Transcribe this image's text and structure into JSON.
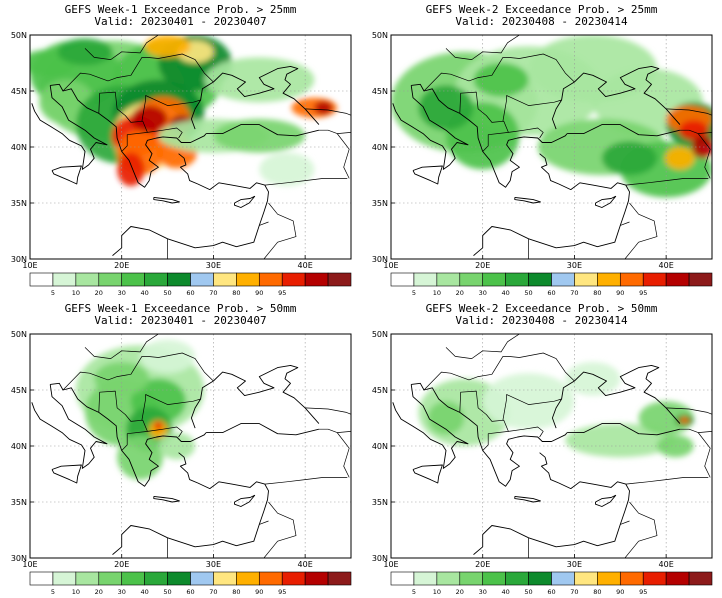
{
  "panels": [
    {
      "id": "w1-25",
      "title": "GEFS Week-1 Exceedance Prob. > 25mm",
      "valid": "Valid: 20230401 - 20230407",
      "lat_labels": [
        "50N",
        "45N",
        "40N",
        "35N",
        "30N"
      ],
      "lon_labels": [
        "10E",
        "20E",
        "30E",
        "40E"
      ]
    },
    {
      "id": "w2-25",
      "title": "GEFS Week-2 Exceedance Prob. > 25mm",
      "valid": "Valid: 20230408 - 20230414",
      "lat_labels": [
        "50N",
        "45N",
        "40N",
        "35N",
        "30N"
      ],
      "lon_labels": [
        "10E",
        "20E",
        "30E",
        "40E"
      ]
    },
    {
      "id": "w1-50",
      "title": "GEFS Week-1 Exceedance Prob. > 50mm",
      "valid": "Valid: 20230401 - 20230407",
      "lat_labels": [
        "50N",
        "45N",
        "40N",
        "35N",
        "30N"
      ],
      "lon_labels": [
        "10E",
        "20E",
        "30E",
        "40E"
      ]
    },
    {
      "id": "w2-50",
      "title": "GEFS Week-2 Exceedance Prob. > 50mm",
      "valid": "Valid: 20230408 - 20230414",
      "lat_labels": [
        "50N",
        "45N",
        "40N",
        "35N",
        "30N"
      ],
      "lon_labels": [
        "10E",
        "20E",
        "30E",
        "40E"
      ]
    }
  ],
  "colorbar": {
    "levels": [
      "5",
      "10",
      "20",
      "30",
      "40",
      "50",
      "60",
      "70",
      "80",
      "90",
      "95"
    ],
    "colors": [
      "#ffffff",
      "#d6f5d6",
      "#a8e6a0",
      "#78d46e",
      "#4cc24a",
      "#2aa83a",
      "#0d8a2c",
      "#a0c8f0",
      "#ffe680",
      "#ffb000",
      "#ff6a00",
      "#e81e00",
      "#b40000",
      "#8c1a1a"
    ]
  },
  "chart_data": [
    {
      "type": "heatmap",
      "title": "GEFS Week-1 Exceedance Prob. > 25mm",
      "subtitle": "Valid: 20230401 - 20230407",
      "x_ticks": [
        "10E",
        "20E",
        "30E",
        "40E"
      ],
      "y_ticks": [
        "50N",
        "45N",
        "40N",
        "35N",
        "30N"
      ],
      "legend_levels": [
        5,
        10,
        20,
        30,
        40,
        50,
        60,
        70,
        80,
        90,
        95
      ]
    },
    {
      "type": "heatmap",
      "title": "GEFS Week-2 Exceedance Prob. > 25mm",
      "subtitle": "Valid: 20230408 - 20230414",
      "x_ticks": [
        "10E",
        "20E",
        "30E",
        "40E"
      ],
      "y_ticks": [
        "50N",
        "45N",
        "40N",
        "35N",
        "30N"
      ],
      "legend_levels": [
        5,
        10,
        20,
        30,
        40,
        50,
        60,
        70,
        80,
        90,
        95
      ]
    },
    {
      "type": "heatmap",
      "title": "GEFS Week-1 Exceedance Prob. > 50mm",
      "subtitle": "Valid: 20230401 - 20230407",
      "x_ticks": [
        "10E",
        "20E",
        "30E",
        "40E"
      ],
      "y_ticks": [
        "50N",
        "45N",
        "40N",
        "35N",
        "30N"
      ],
      "legend_levels": [
        5,
        10,
        20,
        30,
        40,
        50,
        60,
        70,
        80,
        90,
        95
      ]
    },
    {
      "type": "heatmap",
      "title": "GEFS Week-2 Exceedance Prob. > 50mm",
      "subtitle": "Valid: 20230408 - 20230414",
      "x_ticks": [
        "10E",
        "20E",
        "30E",
        "40E"
      ],
      "y_ticks": [
        "50N",
        "45N",
        "40N",
        "35N",
        "30N"
      ],
      "legend_levels": [
        5,
        10,
        20,
        30,
        40,
        50,
        60,
        70,
        80,
        90,
        95
      ]
    }
  ]
}
